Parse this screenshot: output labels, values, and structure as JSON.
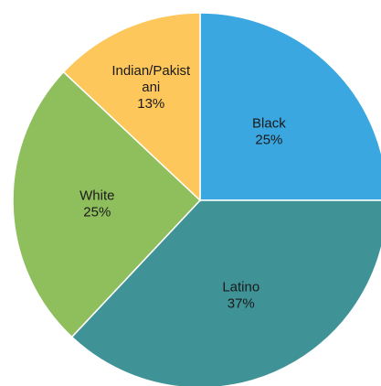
{
  "chart_data": {
    "type": "pie",
    "title": "",
    "categories": [
      "Black",
      "Latino",
      "White",
      "Indian/Pakistani"
    ],
    "values": [
      25,
      37,
      25,
      13
    ],
    "labels": [
      [
        "Black",
        "25%"
      ],
      [
        "Latino",
        "37%"
      ],
      [
        "White",
        "25%"
      ],
      [
        "Indian/Pakist",
        "ani",
        "13%"
      ]
    ],
    "colors": [
      "#3ba7e0",
      "#3f9396",
      "#8fbf5d",
      "#fdc75b"
    ],
    "legend": "none",
    "start": "top-clockwise"
  }
}
